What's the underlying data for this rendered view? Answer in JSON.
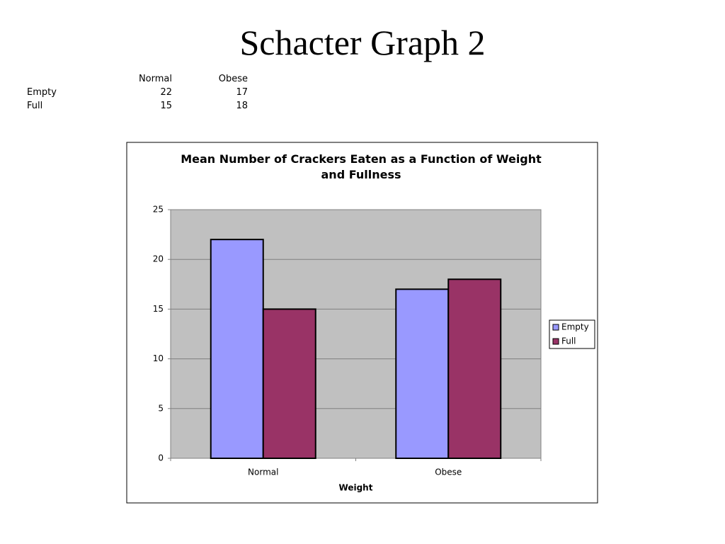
{
  "title": "Schacter Graph 2",
  "table": {
    "columns": [
      "Normal",
      "Obese"
    ],
    "rows": [
      {
        "label": "Empty",
        "values": [
          22,
          17
        ]
      },
      {
        "label": "Full",
        "values": [
          15,
          18
        ]
      }
    ]
  },
  "chart_data": {
    "type": "bar",
    "title": "Mean Number of Crackers Eaten as a Function of Weight and Fullness",
    "x_label": "Weight",
    "categories": [
      "Normal",
      "Obese"
    ],
    "series": [
      {
        "name": "Empty",
        "color": "#9999ff",
        "values": [
          22,
          17
        ]
      },
      {
        "name": "Full",
        "color": "#993366",
        "values": [
          15,
          18
        ]
      }
    ],
    "ylim": [
      0,
      25
    ],
    "yticks": [
      0,
      5,
      10,
      15,
      20,
      25
    ],
    "grid": true,
    "legend": "right",
    "plot_background": "#c0c0c0"
  }
}
